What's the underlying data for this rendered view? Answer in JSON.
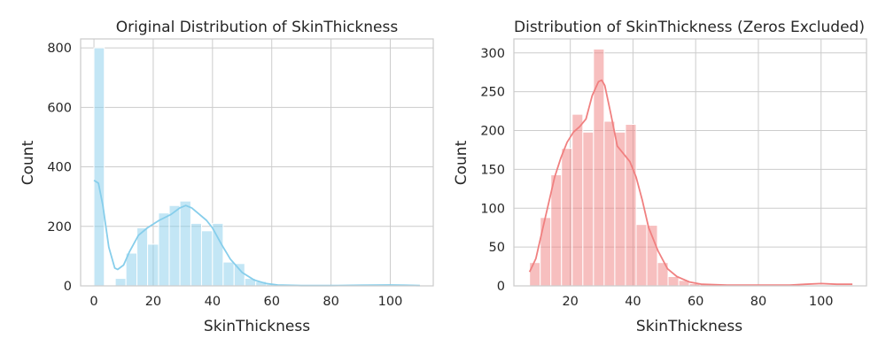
{
  "chart_data": [
    {
      "type": "bar",
      "title": "Original Distribution of SkinThickness",
      "xlabel": "SkinThickness",
      "ylabel": "Count",
      "xlim": [
        -4.5,
        114.5
      ],
      "ylim": [
        0,
        830
      ],
      "xticks": [
        0,
        20,
        40,
        60,
        80,
        100
      ],
      "yticks": [
        0,
        200,
        400,
        600,
        800
      ],
      "grid": true,
      "color": "#87ceeb",
      "bins": [
        {
          "x0": 0,
          "x1": 3.5,
          "count": 800
        },
        {
          "x0": 3.5,
          "x1": 7.2,
          "count": 0
        },
        {
          "x0": 7.2,
          "x1": 10.8,
          "count": 25
        },
        {
          "x0": 10.8,
          "x1": 14.5,
          "count": 110
        },
        {
          "x0": 14.5,
          "x1": 18.1,
          "count": 195
        },
        {
          "x0": 18.1,
          "x1": 21.8,
          "count": 140
        },
        {
          "x0": 21.8,
          "x1": 25.4,
          "count": 245
        },
        {
          "x0": 25.4,
          "x1": 29.0,
          "count": 270
        },
        {
          "x0": 29.0,
          "x1": 32.7,
          "count": 285
        },
        {
          "x0": 32.7,
          "x1": 36.3,
          "count": 210
        },
        {
          "x0": 36.3,
          "x1": 40.0,
          "count": 185
        },
        {
          "x0": 40.0,
          "x1": 43.6,
          "count": 210
        },
        {
          "x0": 43.6,
          "x1": 47.3,
          "count": 80
        },
        {
          "x0": 47.3,
          "x1": 50.9,
          "count": 75
        },
        {
          "x0": 50.9,
          "x1": 54.6,
          "count": 25
        },
        {
          "x0": 54.6,
          "x1": 58.2,
          "count": 15
        },
        {
          "x0": 58.2,
          "x1": 61.9,
          "count": 5
        },
        {
          "x0": 61.9,
          "x1": 65.5,
          "count": 3
        },
        {
          "x0": 65.5,
          "x1": 69.1,
          "count": 0
        },
        {
          "x0": 69.1,
          "x1": 72.8,
          "count": 0
        },
        {
          "x0": 72.8,
          "x1": 76.4,
          "count": 0
        },
        {
          "x0": 76.4,
          "x1": 80.1,
          "count": 0
        },
        {
          "x0": 80.1,
          "x1": 83.7,
          "count": 0
        },
        {
          "x0": 83.7,
          "x1": 87.4,
          "count": 0
        },
        {
          "x0": 87.4,
          "x1": 91.0,
          "count": 0
        },
        {
          "x0": 91.0,
          "x1": 94.7,
          "count": 0
        },
        {
          "x0": 94.7,
          "x1": 98.3,
          "count": 2
        },
        {
          "x0": 98.3,
          "x1": 101.9,
          "count": 3
        },
        {
          "x0": 101.9,
          "x1": 105.6,
          "count": 0
        },
        {
          "x0": 105.6,
          "x1": 109.2,
          "count": 1
        }
      ],
      "kde": [
        [
          0,
          355
        ],
        [
          1.5,
          345
        ],
        [
          3,
          270
        ],
        [
          5,
          130
        ],
        [
          7,
          60
        ],
        [
          8,
          55
        ],
        [
          10,
          70
        ],
        [
          12,
          115
        ],
        [
          15,
          170
        ],
        [
          18,
          195
        ],
        [
          22,
          220
        ],
        [
          26,
          240
        ],
        [
          29,
          262
        ],
        [
          31,
          270
        ],
        [
          33,
          262
        ],
        [
          35,
          245
        ],
        [
          38,
          220
        ],
        [
          40,
          195
        ],
        [
          43,
          140
        ],
        [
          46,
          90
        ],
        [
          50,
          45
        ],
        [
          54,
          20
        ],
        [
          58,
          8
        ],
        [
          62,
          3
        ],
        [
          70,
          1
        ],
        [
          80,
          1
        ],
        [
          90,
          2
        ],
        [
          100,
          3
        ],
        [
          105,
          2
        ],
        [
          110,
          1
        ]
      ]
    },
    {
      "type": "bar",
      "title": "Distribution of SkinThickness (Zeros Excluded)",
      "xlabel": "SkinThickness",
      "ylabel": "Count",
      "xlim": [
        2.0,
        114.5
      ],
      "ylim": [
        0,
        318
      ],
      "xticks": [
        20,
        40,
        60,
        80,
        100
      ],
      "yticks": [
        0,
        50,
        100,
        150,
        200,
        250,
        300
      ],
      "grid": true,
      "color": "#f08080",
      "bins": [
        {
          "x0": 7,
          "x1": 10.4,
          "count": 30
        },
        {
          "x0": 10.4,
          "x1": 13.8,
          "count": 88
        },
        {
          "x0": 13.8,
          "x1": 17.2,
          "count": 143
        },
        {
          "x0": 17.2,
          "x1": 20.6,
          "count": 177
        },
        {
          "x0": 20.6,
          "x1": 24.0,
          "count": 221
        },
        {
          "x0": 24.0,
          "x1": 27.4,
          "count": 198
        },
        {
          "x0": 27.4,
          "x1": 30.8,
          "count": 305
        },
        {
          "x0": 30.8,
          "x1": 34.2,
          "count": 212
        },
        {
          "x0": 34.2,
          "x1": 37.6,
          "count": 198
        },
        {
          "x0": 37.6,
          "x1": 41.0,
          "count": 208
        },
        {
          "x0": 41.0,
          "x1": 44.4,
          "count": 79
        },
        {
          "x0": 44.4,
          "x1": 47.8,
          "count": 78
        },
        {
          "x0": 47.8,
          "x1": 51.2,
          "count": 30
        },
        {
          "x0": 51.2,
          "x1": 54.6,
          "count": 12
        },
        {
          "x0": 54.6,
          "x1": 58.0,
          "count": 7
        },
        {
          "x0": 58.0,
          "x1": 61.4,
          "count": 3
        },
        {
          "x0": 61.4,
          "x1": 64.8,
          "count": 3
        },
        {
          "x0": 64.8,
          "x1": 68.2,
          "count": 1
        },
        {
          "x0": 68.2,
          "x1": 71.6,
          "count": 0
        },
        {
          "x0": 71.6,
          "x1": 75.0,
          "count": 0
        },
        {
          "x0": 75.0,
          "x1": 78.4,
          "count": 0
        },
        {
          "x0": 78.4,
          "x1": 81.8,
          "count": 0
        },
        {
          "x0": 81.8,
          "x1": 85.2,
          "count": 0
        },
        {
          "x0": 85.2,
          "x1": 88.6,
          "count": 0
        },
        {
          "x0": 88.6,
          "x1": 92.0,
          "count": 0
        },
        {
          "x0": 92.0,
          "x1": 95.4,
          "count": 0
        },
        {
          "x0": 95.4,
          "x1": 98.8,
          "count": 1
        },
        {
          "x0": 98.8,
          "x1": 102.2,
          "count": 1
        },
        {
          "x0": 102.2,
          "x1": 105.6,
          "count": 0
        },
        {
          "x0": 105.6,
          "x1": 109.0,
          "count": 1
        }
      ],
      "kde": [
        [
          7,
          18
        ],
        [
          9,
          35
        ],
        [
          11,
          70
        ],
        [
          13,
          105
        ],
        [
          15,
          140
        ],
        [
          17,
          165
        ],
        [
          19,
          185
        ],
        [
          21,
          198
        ],
        [
          23,
          205
        ],
        [
          25,
          215
        ],
        [
          27,
          245
        ],
        [
          29,
          263
        ],
        [
          30,
          265
        ],
        [
          31,
          258
        ],
        [
          33,
          220
        ],
        [
          35,
          180
        ],
        [
          37,
          170
        ],
        [
          39,
          160
        ],
        [
          41,
          140
        ],
        [
          43,
          110
        ],
        [
          45,
          75
        ],
        [
          48,
          45
        ],
        [
          51,
          22
        ],
        [
          54,
          12
        ],
        [
          58,
          5
        ],
        [
          62,
          2
        ],
        [
          70,
          1
        ],
        [
          80,
          1
        ],
        [
          90,
          1
        ],
        [
          95,
          2
        ],
        [
          100,
          3
        ],
        [
          105,
          2
        ],
        [
          110,
          2
        ]
      ]
    }
  ]
}
